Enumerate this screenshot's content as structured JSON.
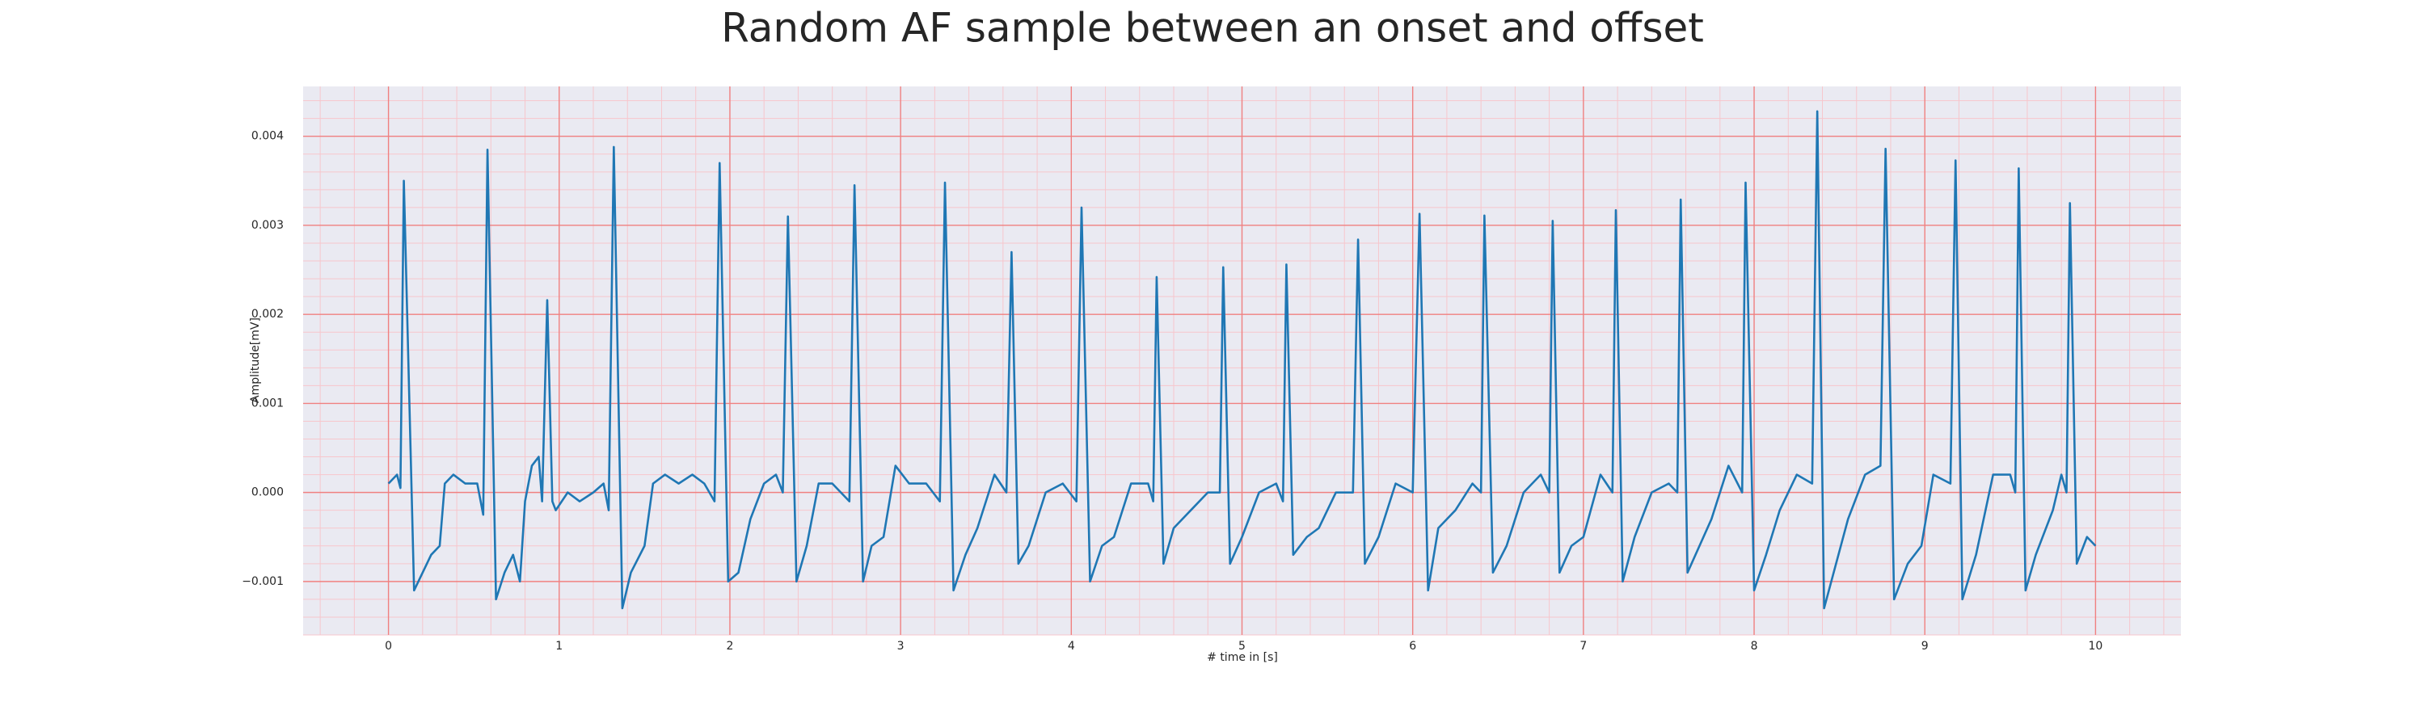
{
  "chart_data": {
    "type": "line",
    "title": "Random AF sample between an onset and offset",
    "xlabel": "# time in [s]",
    "ylabel": "Amplitude[mV]",
    "color": "#1f77b4",
    "background": "#eaeaf2",
    "grid": true,
    "grid_color": "#f08080",
    "minor_grid": true,
    "minor_grid_color": "#f7c6cc",
    "xlim": [
      -0.5,
      10.5
    ],
    "ylim": [
      -0.0016,
      0.00456
    ],
    "xticks": [
      0,
      1,
      2,
      3,
      4,
      5,
      6,
      7,
      8,
      9,
      10
    ],
    "yticks": [
      {
        "value": -0.001,
        "label": "−0.001"
      },
      {
        "value": 0,
        "label": "0.000"
      },
      {
        "value": 0.001,
        "label": "0.001"
      },
      {
        "value": 0.002,
        "label": "0.002"
      },
      {
        "value": 0.003,
        "label": "0.003"
      },
      {
        "value": 0.004,
        "label": "0.004"
      }
    ],
    "x": [
      0,
      0.05,
      0.07,
      0.09,
      0.15,
      0.25,
      0.3,
      0.33,
      0.38,
      0.45,
      0.52,
      0.555,
      0.58,
      0.63,
      0.68,
      0.73,
      0.77,
      0.8,
      0.84,
      0.88,
      0.9,
      0.93,
      0.96,
      0.98,
      1.05,
      1.12,
      1.2,
      1.26,
      1.29,
      1.32,
      1.37,
      1.42,
      1.5,
      1.55,
      1.62,
      1.7,
      1.78,
      1.85,
      1.91,
      1.94,
      1.99,
      2.05,
      2.12,
      2.2,
      2.27,
      2.31,
      2.34,
      2.39,
      2.45,
      2.52,
      2.6,
      2.7,
      2.73,
      2.78,
      2.83,
      2.9,
      2.97,
      3.05,
      3.15,
      3.23,
      3.26,
      3.31,
      3.38,
      3.45,
      3.55,
      3.62,
      3.65,
      3.69,
      3.75,
      3.85,
      3.95,
      4.03,
      4.06,
      4.11,
      4.18,
      4.25,
      4.35,
      4.45,
      4.48,
      4.5,
      4.54,
      4.6,
      4.7,
      4.8,
      4.87,
      4.89,
      4.93,
      5.0,
      5.1,
      5.2,
      5.24,
      5.26,
      5.3,
      5.38,
      5.45,
      5.55,
      5.65,
      5.68,
      5.72,
      5.8,
      5.9,
      6.0,
      6.04,
      6.09,
      6.15,
      6.25,
      6.35,
      6.4,
      6.42,
      6.47,
      6.55,
      6.65,
      6.75,
      6.8,
      6.82,
      6.86,
      6.93,
      7.0,
      7.1,
      7.17,
      7.19,
      7.23,
      7.3,
      7.4,
      7.5,
      7.55,
      7.57,
      7.61,
      7.68,
      7.75,
      7.85,
      7.93,
      7.95,
      8.0,
      8.07,
      8.15,
      8.25,
      8.34,
      8.37,
      8.41,
      8.48,
      8.55,
      8.65,
      8.74,
      8.77,
      8.82,
      8.9,
      8.98,
      9.05,
      9.15,
      9.18,
      9.22,
      9.3,
      9.4,
      9.5,
      9.53,
      9.55,
      9.59,
      9.65,
      9.75,
      9.8,
      9.83,
      9.85,
      9.89,
      9.95,
      10.0
    ],
    "values": [
      0.0001,
      0.0002,
      5e-05,
      0.0035,
      -0.0011,
      -0.0007,
      -0.0006,
      0.0001,
      0.0002,
      0.0001,
      0.0001,
      -0.00025,
      0.00385,
      -0.0012,
      -0.0009,
      -0.0007,
      -0.001,
      -0.0001,
      0.0003,
      0.0004,
      -0.0001,
      0.00216,
      -0.0001,
      -0.0002,
      0,
      -0.0001,
      0,
      0.0001,
      -0.0002,
      0.00388,
      -0.0013,
      -0.0009,
      -0.0006,
      0.0001,
      0.0002,
      0.0001,
      0.0002,
      0.0001,
      -0.0001,
      0.0037,
      -0.001,
      -0.0009,
      -0.0003,
      0.0001,
      0.0002,
      0,
      0.0031,
      -0.001,
      -0.0006,
      0.0001,
      0.0001,
      -0.0001,
      0.00345,
      -0.001,
      -0.0006,
      -0.0005,
      0.0003,
      0.0001,
      0.0001,
      -0.0001,
      0.00348,
      -0.0011,
      -0.0007,
      -0.0004,
      0.0002,
      0,
      0.0027,
      -0.0008,
      -0.0006,
      0,
      0.0001,
      -0.0001,
      0.0032,
      -0.001,
      -0.0006,
      -0.0005,
      0.0001,
      0.0001,
      -0.0001,
      0.00242,
      -0.0008,
      -0.0004,
      -0.0002,
      0,
      0,
      0.00253,
      -0.0008,
      -0.0005,
      0,
      0.0001,
      -0.0001,
      0.00256,
      -0.0007,
      -0.0005,
      -0.0004,
      0,
      0,
      0.00284,
      -0.0008,
      -0.0005,
      0.0001,
      0,
      0.00313,
      -0.0011,
      -0.0004,
      -0.0002,
      0.0001,
      0,
      0.00311,
      -0.0009,
      -0.0006,
      0,
      0.0002,
      0,
      0.00305,
      -0.0009,
      -0.0006,
      -0.0005,
      0.0002,
      0,
      0.00317,
      -0.001,
      -0.0005,
      0,
      0.0001,
      0,
      0.00329,
      -0.0009,
      -0.0006,
      -0.0003,
      0.0003,
      0,
      0.00348,
      -0.0011,
      -0.0007,
      -0.0002,
      0.0002,
      0.0001,
      0.00428,
      -0.0013,
      -0.0008,
      -0.0003,
      0.0002,
      0.0003,
      0.00386,
      -0.0012,
      -0.0008,
      -0.0006,
      0.0002,
      0.0001,
      0.00373,
      -0.0012,
      -0.0007,
      0.0002,
      0.0002,
      0,
      0.00364,
      -0.0011,
      -0.0007,
      -0.0002,
      0.0002,
      0,
      0.00325,
      -0.0008,
      -0.0005,
      -0.0006
    ]
  }
}
